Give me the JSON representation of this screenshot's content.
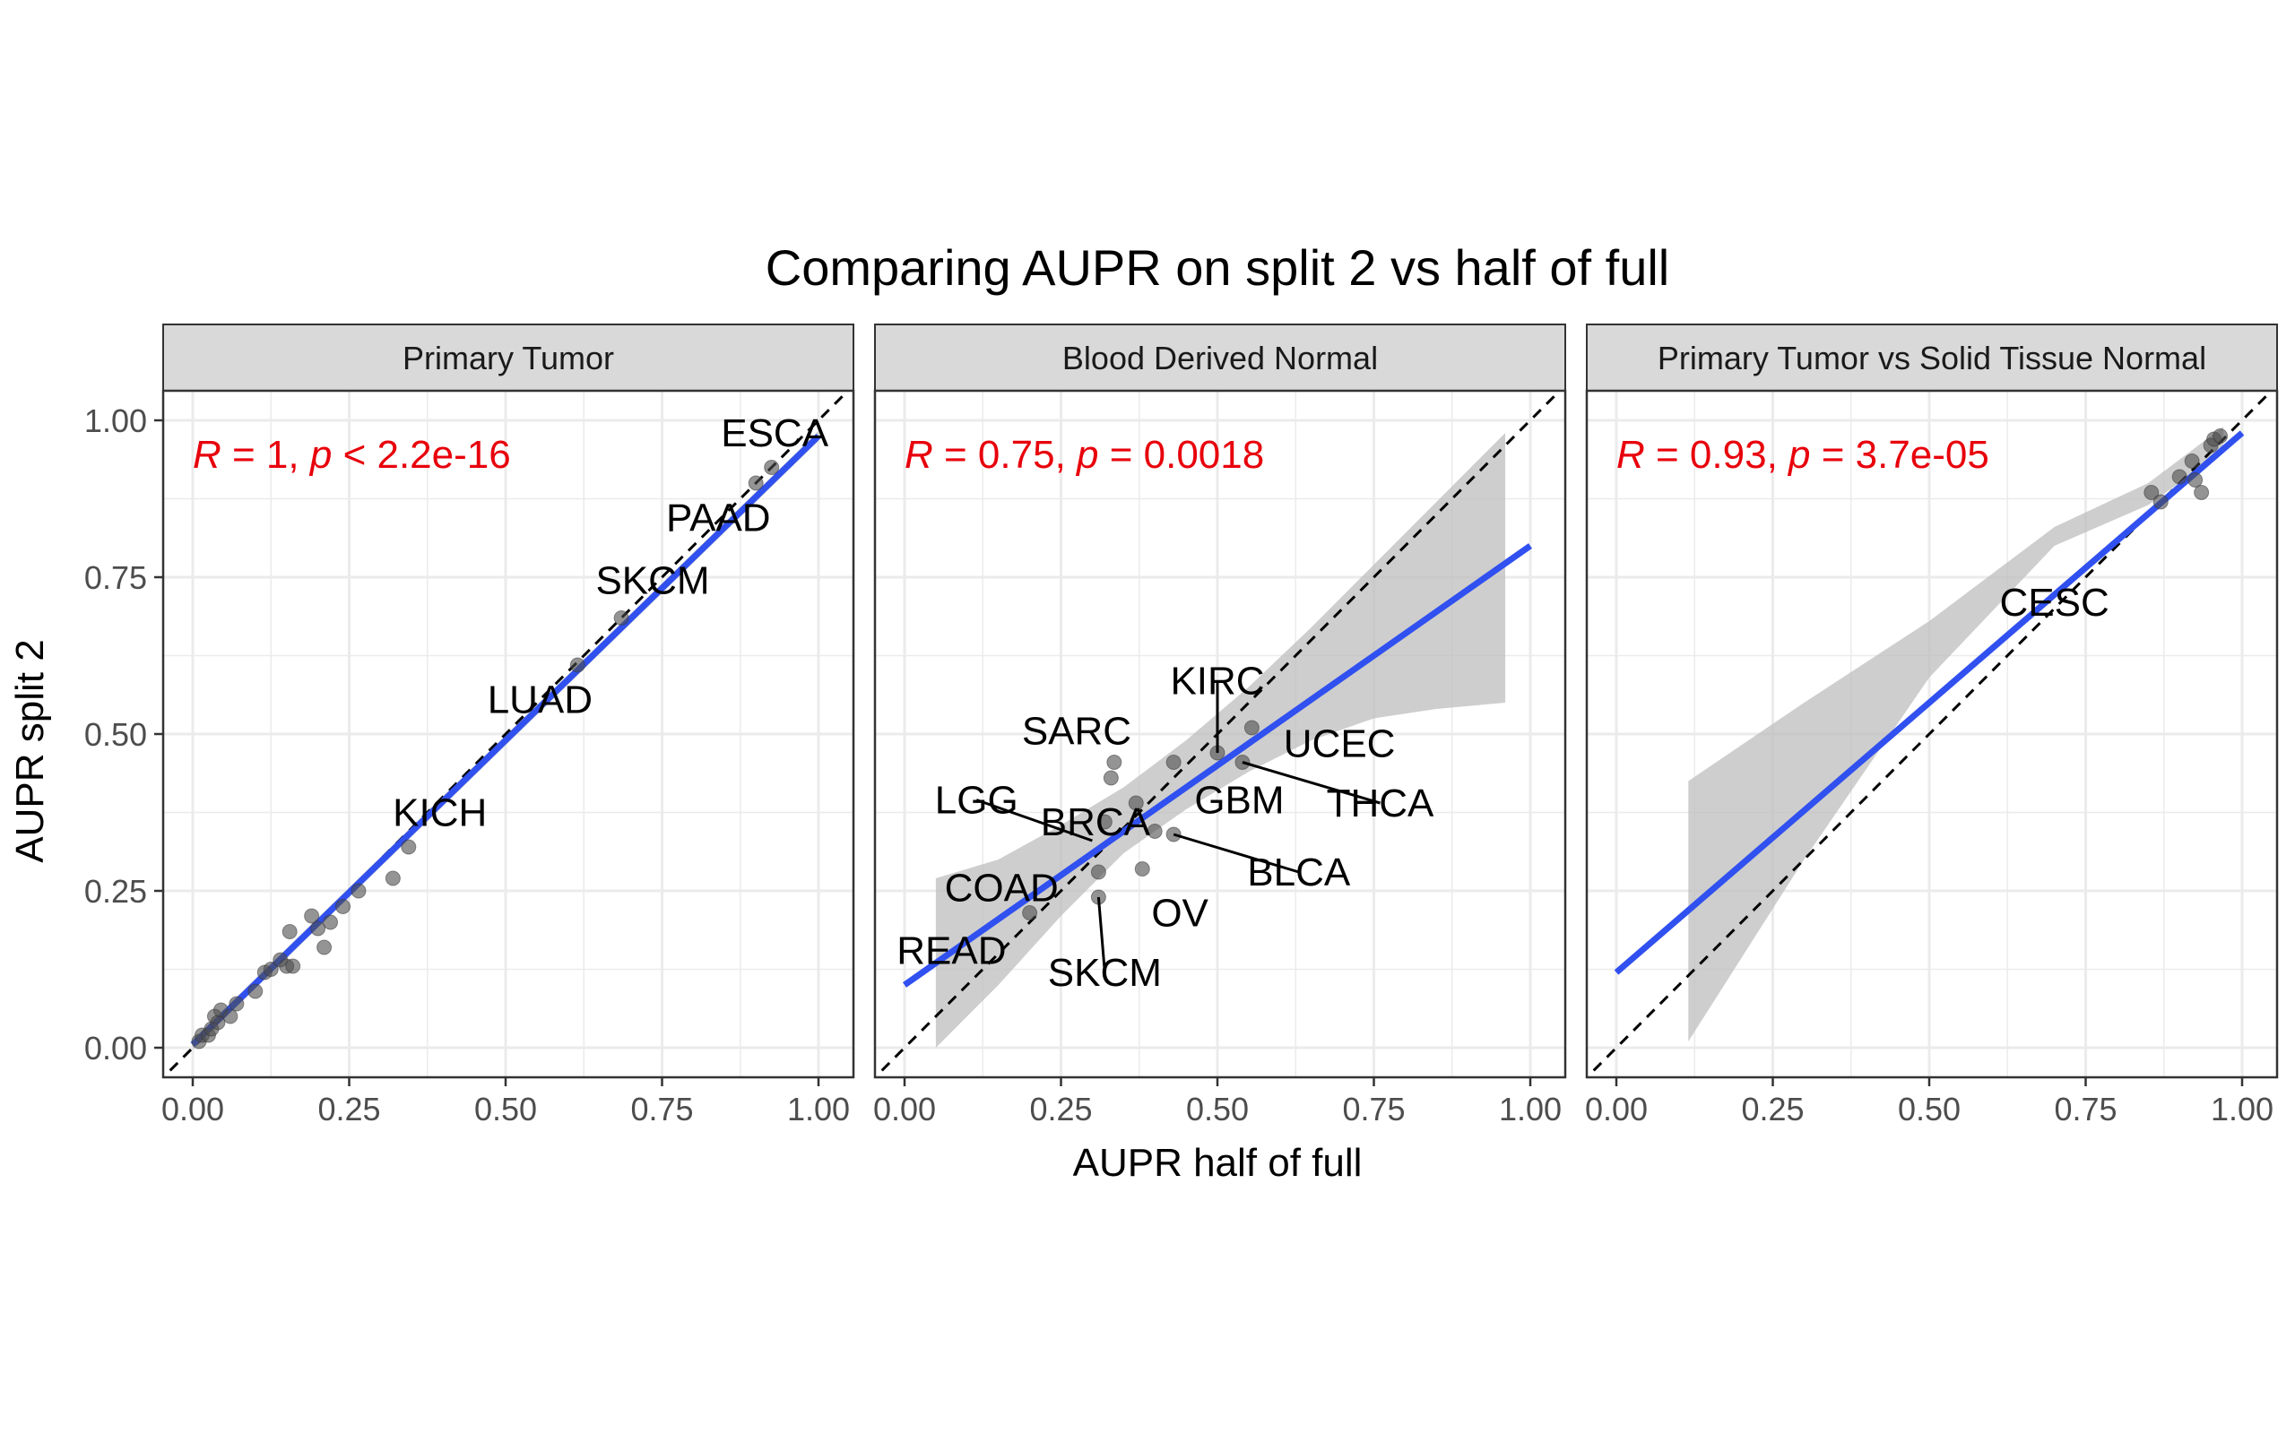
{
  "title": "Comparing AUPR on split 2 vs half of full",
  "xlabel": "AUPR half of full",
  "ylabel": "AUPR split 2",
  "colors": {
    "point": "#4d4d4d",
    "fit_line": "#3050f0",
    "ribbon": "#bdbdbd",
    "stat_text": "#e8000b",
    "strip_bg": "#d9d9d9",
    "grid": "#ebebeb",
    "identity_line": "#000000"
  },
  "chart_data": [
    {
      "type": "scatter",
      "facet": "Primary Tumor",
      "stat": {
        "r_label": "R",
        "r_value": " = 1, ",
        "p_label": "p",
        "p_value": " < 2.2e-16"
      },
      "xlim": [
        0,
        1
      ],
      "ylim": [
        0,
        1
      ],
      "xticks": [
        "0.00",
        "0.25",
        "0.50",
        "0.75",
        "1.00"
      ],
      "yticks": [
        "0.00",
        "0.25",
        "0.50",
        "0.75",
        "1.00"
      ],
      "reference_line": "y = x (dashed)",
      "fit": {
        "x0": 0.0,
        "y0": 0.005,
        "x1": 1.0,
        "y1": 0.975,
        "ribbon_halfwidth": 0.008
      },
      "points": [
        [
          0.01,
          0.01
        ],
        [
          0.015,
          0.02
        ],
        [
          0.025,
          0.02
        ],
        [
          0.03,
          0.03
        ],
        [
          0.035,
          0.05
        ],
        [
          0.04,
          0.04
        ],
        [
          0.045,
          0.06
        ],
        [
          0.06,
          0.05
        ],
        [
          0.07,
          0.07
        ],
        [
          0.1,
          0.09
        ],
        [
          0.115,
          0.12
        ],
        [
          0.125,
          0.125
        ],
        [
          0.14,
          0.14
        ],
        [
          0.15,
          0.13
        ],
        [
          0.155,
          0.185
        ],
        [
          0.16,
          0.13
        ],
        [
          0.19,
          0.21
        ],
        [
          0.2,
          0.19
        ],
        [
          0.21,
          0.16
        ],
        [
          0.22,
          0.2
        ],
        [
          0.24,
          0.225
        ],
        [
          0.265,
          0.25
        ],
        [
          0.32,
          0.27
        ],
        [
          0.345,
          0.32
        ],
        [
          0.615,
          0.61
        ],
        [
          0.685,
          0.685
        ],
        [
          0.9,
          0.9
        ],
        [
          0.925,
          0.925
        ]
      ],
      "labels": [
        {
          "text": "ESCA",
          "x": 0.93,
          "y": 0.98
        },
        {
          "text": "PAAD",
          "x": 0.84,
          "y": 0.845
        },
        {
          "text": "SKCM",
          "x": 0.735,
          "y": 0.745
        },
        {
          "text": "LUAD",
          "x": 0.555,
          "y": 0.555
        },
        {
          "text": "KICH",
          "x": 0.395,
          "y": 0.375
        }
      ]
    },
    {
      "type": "scatter",
      "facet": "Blood Derived Normal",
      "stat": {
        "r_label": "R",
        "r_value": " = 0.75, ",
        "p_label": "p",
        "p_value": " = 0.0018"
      },
      "xlim": [
        0,
        1
      ],
      "ylim": [
        0,
        1
      ],
      "xticks": [
        "0.00",
        "0.25",
        "0.50",
        "0.75",
        "1.00"
      ],
      "yticks": [
        "0.00",
        "0.25",
        "0.50",
        "0.75",
        "1.00"
      ],
      "reference_line": "y = x (dashed)",
      "fit": {
        "x0": 0.0,
        "y0": 0.1,
        "x1": 1.0,
        "y1": 0.8,
        "ribbon": [
          [
            0.05,
            0.27,
            0.0
          ],
          [
            0.15,
            0.3,
            0.1
          ],
          [
            0.25,
            0.355,
            0.21
          ],
          [
            0.35,
            0.415,
            0.31
          ],
          [
            0.45,
            0.49,
            0.38
          ],
          [
            0.55,
            0.575,
            0.44
          ],
          [
            0.65,
            0.67,
            0.49
          ],
          [
            0.75,
            0.77,
            0.525
          ],
          [
            0.85,
            0.87,
            0.54
          ],
          [
            0.96,
            0.98,
            0.55
          ]
        ]
      },
      "points": [
        [
          0.2,
          0.215
        ],
        [
          0.31,
          0.28
        ],
        [
          0.31,
          0.24
        ],
        [
          0.32,
          0.36
        ],
        [
          0.33,
          0.43
        ],
        [
          0.335,
          0.455
        ],
        [
          0.37,
          0.39
        ],
        [
          0.38,
          0.285
        ],
        [
          0.4,
          0.345
        ],
        [
          0.43,
          0.455
        ],
        [
          0.43,
          0.34
        ],
        [
          0.5,
          0.47
        ],
        [
          0.54,
          0.455
        ],
        [
          0.555,
          0.51
        ]
      ],
      "labels": [
        {
          "text": "KIRC",
          "x": 0.5,
          "y": 0.585,
          "point": [
            0.5,
            0.47
          ]
        },
        {
          "text": "SARC",
          "x": 0.275,
          "y": 0.505
        },
        {
          "text": "UCEC",
          "x": 0.695,
          "y": 0.485
        },
        {
          "text": "LGG",
          "x": 0.115,
          "y": 0.395,
          "point": [
            0.3,
            0.33
          ]
        },
        {
          "text": "BRCA",
          "x": 0.305,
          "y": 0.36
        },
        {
          "text": "GBM",
          "x": 0.535,
          "y": 0.395
        },
        {
          "text": "THCA",
          "x": 0.76,
          "y": 0.39,
          "point": [
            0.54,
            0.455
          ]
        },
        {
          "text": "BLCA",
          "x": 0.63,
          "y": 0.28,
          "point": [
            0.43,
            0.34
          ]
        },
        {
          "text": "COAD",
          "x": 0.155,
          "y": 0.255
        },
        {
          "text": "OV",
          "x": 0.44,
          "y": 0.215
        },
        {
          "text": "READ",
          "x": 0.075,
          "y": 0.155
        },
        {
          "text": "SKCM",
          "x": 0.32,
          "y": 0.12,
          "point": [
            0.31,
            0.24
          ]
        }
      ]
    },
    {
      "type": "scatter",
      "facet": "Primary Tumor vs Solid Tissue Normal",
      "stat": {
        "r_label": "R",
        "r_value": " = 0.93, ",
        "p_label": "p",
        "p_value": " = 3.7e-05"
      },
      "xlim": [
        0,
        1
      ],
      "ylim": [
        0,
        1
      ],
      "xticks": [
        "0.00",
        "0.25",
        "0.50",
        "0.75",
        "1.00"
      ],
      "yticks": [
        "0.00",
        "0.25",
        "0.50",
        "0.75",
        "1.00"
      ],
      "reference_line": "y = x (dashed)",
      "fit": {
        "x0": 0.0,
        "y0": 0.12,
        "x1": 1.0,
        "y1": 0.98,
        "ribbon": [
          [
            0.115,
            0.425,
            0.01
          ],
          [
            0.3,
            0.55,
            0.3
          ],
          [
            0.5,
            0.68,
            0.59
          ],
          [
            0.7,
            0.83,
            0.8
          ],
          [
            0.85,
            0.9,
            0.865
          ],
          [
            0.97,
            0.99,
            0.95
          ]
        ]
      },
      "points": [
        [
          0.855,
          0.885
        ],
        [
          0.87,
          0.87
        ],
        [
          0.9,
          0.91
        ],
        [
          0.92,
          0.935
        ],
        [
          0.925,
          0.905
        ],
        [
          0.935,
          0.885
        ],
        [
          0.95,
          0.96
        ],
        [
          0.955,
          0.97
        ],
        [
          0.965,
          0.975
        ]
      ],
      "labels": [
        {
          "text": "CESC",
          "x": 0.7,
          "y": 0.71
        }
      ]
    }
  ]
}
